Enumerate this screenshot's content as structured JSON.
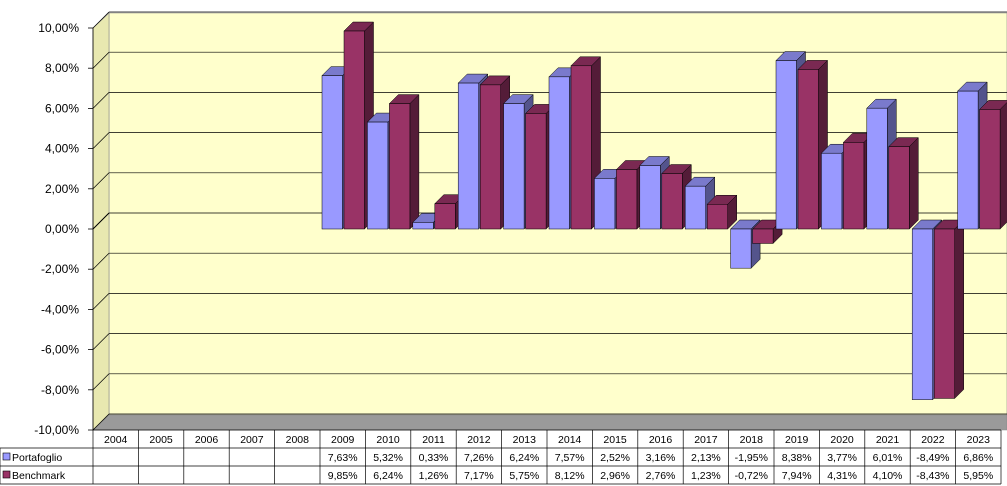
{
  "chart_data": {
    "type": "bar",
    "categories": [
      "2004",
      "2005",
      "2006",
      "2007",
      "2008",
      "2009",
      "2010",
      "2011",
      "2012",
      "2013",
      "2014",
      "2015",
      "2016",
      "2017",
      "2018",
      "2019",
      "2020",
      "2021",
      "2022",
      "2023"
    ],
    "series": [
      {
        "name": "Portafoglio",
        "values": [
          null,
          null,
          null,
          null,
          null,
          7.63,
          5.32,
          0.33,
          7.26,
          6.24,
          7.57,
          2.52,
          3.16,
          2.13,
          -1.95,
          8.38,
          3.77,
          6.01,
          -8.49,
          6.86
        ],
        "labels": [
          "",
          "",
          "",
          "",
          "",
          "7,63%",
          "5,32%",
          "0,33%",
          "7,26%",
          "6,24%",
          "7,57%",
          "2,52%",
          "3,16%",
          "2,13%",
          "-1,95%",
          "8,38%",
          "3,77%",
          "6,01%",
          "-8,49%",
          "6,86%"
        ],
        "color": "#9999ff"
      },
      {
        "name": "Benchmark",
        "values": [
          null,
          null,
          null,
          null,
          null,
          9.85,
          6.24,
          1.26,
          7.17,
          5.75,
          8.12,
          2.96,
          2.76,
          1.23,
          -0.72,
          7.94,
          4.31,
          4.1,
          -8.43,
          5.95
        ],
        "labels": [
          "",
          "",
          "",
          "",
          "",
          "9,85%",
          "6,24%",
          "1,26%",
          "7,17%",
          "5,75%",
          "8,12%",
          "2,96%",
          "2,76%",
          "1,23%",
          "-0,72%",
          "7,94%",
          "4,31%",
          "4,10%",
          "-8,43%",
          "5,95%"
        ],
        "color": "#993366"
      }
    ],
    "y_ticks": [
      10,
      8,
      6,
      4,
      2,
      0,
      -2,
      -4,
      -6,
      -8,
      -10
    ],
    "y_tick_labels": [
      "10,00%",
      "8,00%",
      "6,00%",
      "4,00%",
      "2,00%",
      "0,00%",
      "-2,00%",
      "-4,00%",
      "-6,00%",
      "-8,00%",
      "-10,00%"
    ],
    "ylim": [
      -10,
      10
    ],
    "grid": true,
    "legend": "data-table-left",
    "colors": {
      "plot_background": "#ffffcc",
      "grid": "#000000"
    }
  }
}
